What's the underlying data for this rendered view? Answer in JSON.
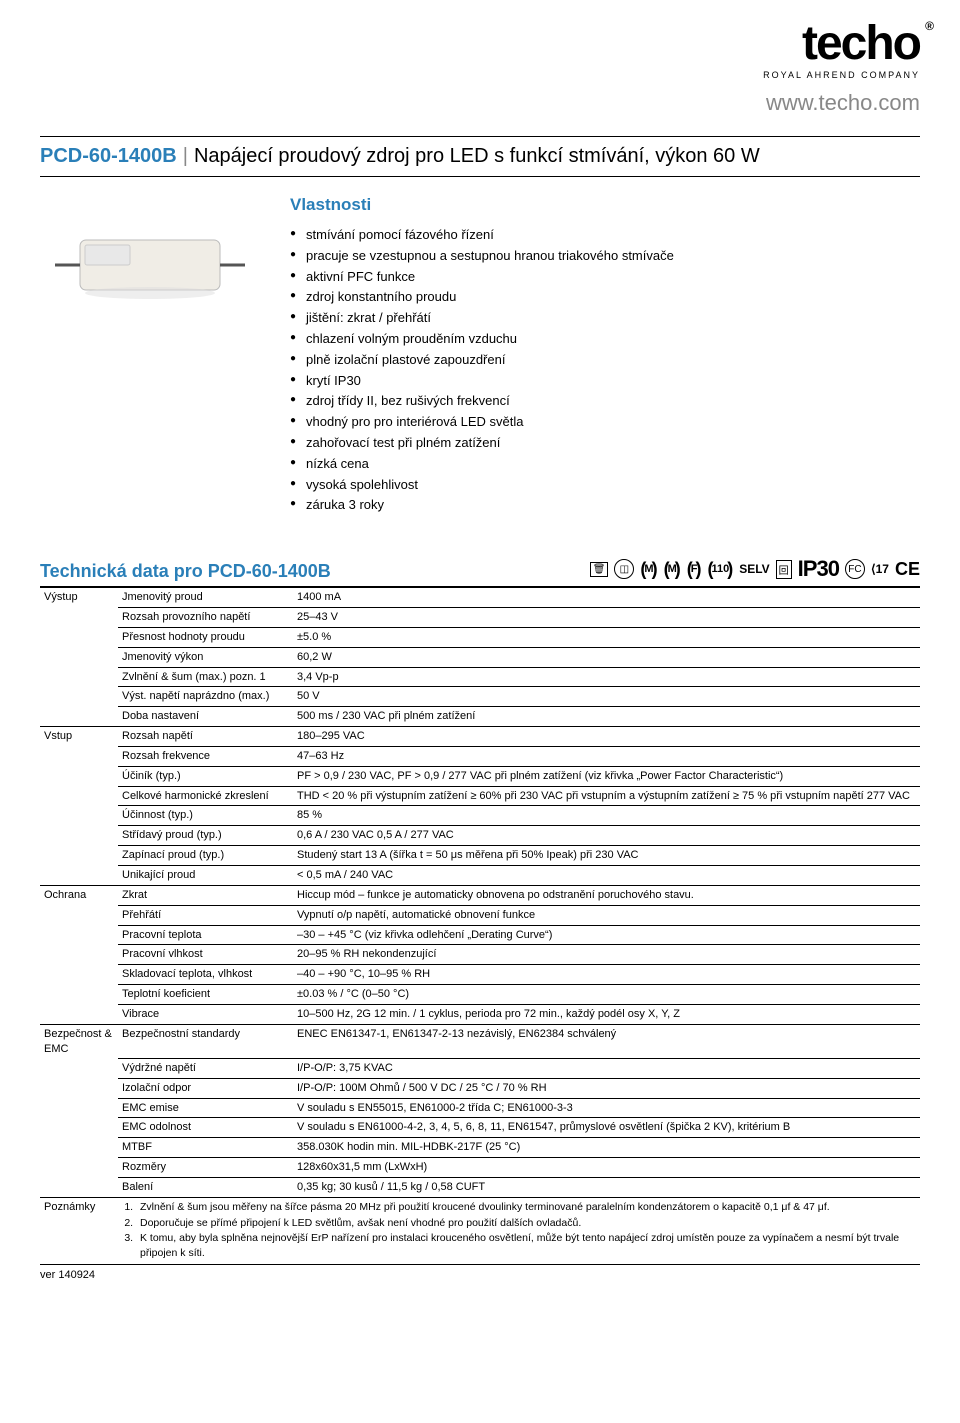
{
  "brand": {
    "name": "techo",
    "subtitle": "ROYAL AHREND COMPANY",
    "url": "www.techo.com"
  },
  "title": {
    "model": "PCD-60-1400B",
    "desc": "Napájecí proudový zdroj pro LED s funkcí stmívání, výkon 60 W"
  },
  "features_title": "Vlastnosti",
  "features": [
    "stmívání pomocí fázového řízení",
    "pracuje se vzestupnou a sestupnou hranou triakového stmívače",
    "aktivní PFC funkce",
    "zdroj konstantního proudu",
    "jištění: zkrat / přehřátí",
    "chlazení volným prouděním vzduchu",
    "plně izolační plastové zapouzdření",
    "krytí IP30",
    "zdroj třídy II, bez rušivých frekvencí",
    "vhodný pro pro interiérová LED světla",
    "zahořovací test při plném zatížení",
    "nízká cena",
    "vysoká spolehlivost",
    "záruka 3 roky"
  ],
  "specs_title": "Technická data pro PCD-60-1400B",
  "cert": {
    "m1": "M",
    "m2": "M",
    "f": "F",
    "v110": "110",
    "selv": "SELV",
    "ip": "IP30",
    "enec17": "17"
  },
  "groups": [
    {
      "name": "Výstup",
      "rows": [
        [
          "Jmenovitý proud",
          "1400 mA"
        ],
        [
          "Rozsah provozního napětí",
          "25–43 V"
        ],
        [
          "Přesnost hodnoty proudu",
          "±5.0 %"
        ],
        [
          "Jmenovitý výkon",
          "60,2 W"
        ],
        [
          "Zvlnění & šum (max.)   pozn. 1",
          "3,4 Vp-p"
        ],
        [
          "Výst. napětí naprázdno (max.)",
          "50 V"
        ],
        [
          "Doba nastavení",
          "500 ms / 230 VAC při plném zatížení"
        ]
      ]
    },
    {
      "name": "Vstup",
      "rows": [
        [
          "Rozsah napětí",
          "180–295 VAC"
        ],
        [
          "Rozsah frekvence",
          "47–63 Hz"
        ],
        [
          "Účiník (typ.)",
          "PF > 0,9 / 230 VAC, PF > 0,9 / 277 VAC při plném zatížení (viz křivka „Power Factor Characteristic“)"
        ],
        [
          "Celkové harmonické zkreslení",
          "THD < 20 % při výstupním zatížení ≥ 60% při 230 VAC při vstupním a výstupním zatížení ≥ 75 % při vstupním napětí 277 VAC"
        ],
        [
          "Účinnost (typ.)",
          "85 %"
        ],
        [
          "Střídavý proud (typ.)",
          "0,6 A / 230 VAC  0,5 A / 277 VAC"
        ],
        [
          "Zapínací proud (typ.)",
          "Studený start 13 A (šířka t = 50 μs měřena při 50% Ipeak) při 230 VAC"
        ],
        [
          "Unikající proud",
          "< 0,5 mA / 240 VAC"
        ]
      ]
    },
    {
      "name": "Ochrana",
      "rows": [
        [
          "Zkrat",
          "Hiccup mód – funkce je automaticky obnovena po odstranění poruchového stavu."
        ],
        [
          "Přehřátí",
          "Vypnutí o/p napětí, automatické obnovení funkce"
        ],
        [
          "Pracovní teplota",
          "–30 – +45 °C (viz křivka odlehčení „Derating Curve“)"
        ],
        [
          "Pracovní vlhkost",
          "20–95 % RH nekondenzující"
        ],
        [
          "Skladovací teplota, vlhkost",
          "–40 – +90 °C, 10–95 % RH"
        ],
        [
          "Teplotní koeficient",
          "±0.03 % / °C (0–50 °C)"
        ],
        [
          "Vibrace",
          "10–500 Hz, 2G 12 min. / 1 cyklus, perioda pro 72 min., každý podél osy X, Y, Z"
        ]
      ]
    },
    {
      "name": "Bezpečnost & EMC",
      "rows": [
        [
          "Bezpečnostní standardy",
          "ENEC EN61347-1, EN61347-2-13 nezávislý, EN62384 schválený"
        ],
        [
          "Výdržné napětí",
          "I/P-O/P: 3,75 KVAC"
        ],
        [
          "Izolační odpor",
          "I/P-O/P: 100M Ohmů / 500 V DC / 25 °C / 70 % RH"
        ],
        [
          "EMC emise",
          "V souladu s EN55015, EN61000-2 třída C; EN61000-3-3"
        ],
        [
          "EMC odolnost",
          "V souladu s EN61000-4-2, 3, 4, 5, 6, 8, 11, EN61547, průmyslové osvětlení (špička 2 KV), kritérium B"
        ],
        [
          "MTBF",
          "358.030K hodin min.    MIL-HDBK-217F (25 °C)"
        ],
        [
          "Rozměry",
          "128x60x31,5 mm (LxWxH)"
        ],
        [
          "Balení",
          "0,35 kg; 30 kusů / 11,5 kg / 0,58 CUFT"
        ]
      ]
    }
  ],
  "notes_label": "Poznámky",
  "notes": [
    "Zvlnění & šum jsou měřeny na šířce pásma 20 MHz při použití kroucené dvoulinky terminované paralelním kondenzátorem o kapacitě  0,1 μf & 47 μf.",
    "Doporučuje se přímé připojení k LED světlům, avšak není vhodné pro použití dalších ovladačů.",
    "K tomu, aby byla splněna nejnovější ErP nařízení pro instalaci krouceného osvětlení, může být tento napájecí zdroj umístěn pouze za vypínačem a nesmí být trvale připojen k síti."
  ],
  "version": "ver 140924",
  "colors": {
    "accent": "#2a7fb8",
    "url_gray": "#888888",
    "text": "#000000",
    "bg": "#ffffff"
  }
}
